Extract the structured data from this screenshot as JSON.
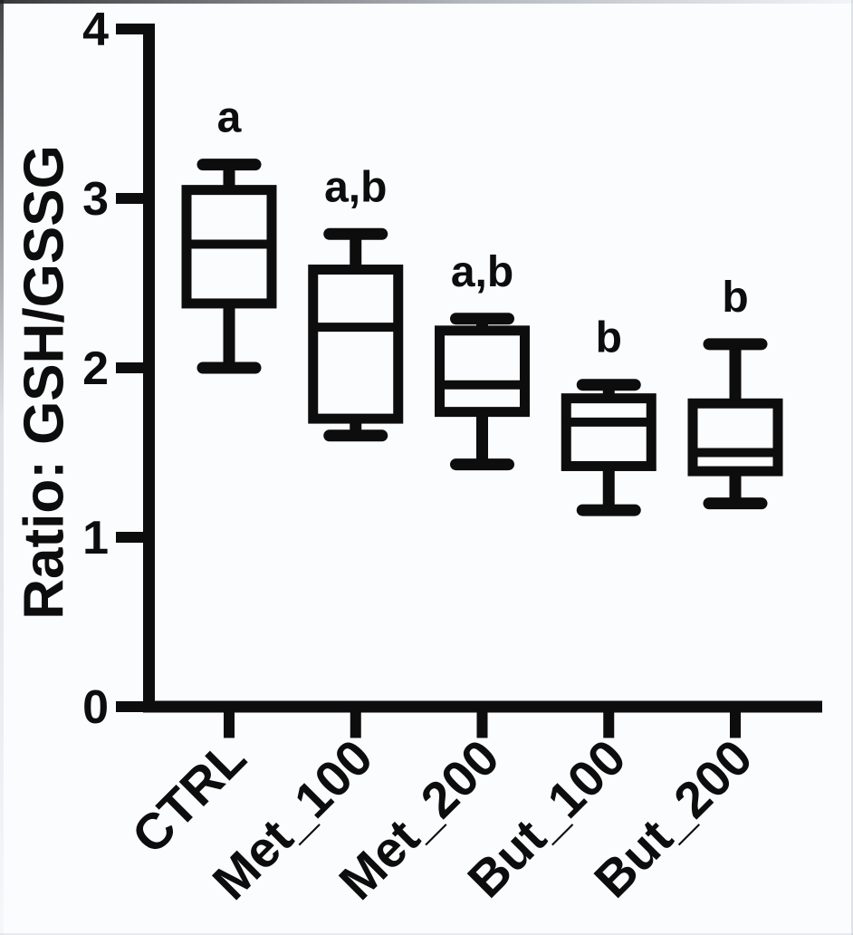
{
  "figure": {
    "background_color": "#fbfcfe",
    "ink_color": "#0d0d0d"
  },
  "chart_data": {
    "type": "boxplot",
    "title": "",
    "xlabel": "",
    "ylabel": "Ratio: GSH/GSSG",
    "ylim": [
      0,
      4
    ],
    "yticks": [
      0,
      1,
      2,
      3,
      4
    ],
    "grid": false,
    "legend": null,
    "x_tick_rotation_deg": 45,
    "categories": [
      "CTRL",
      "Met_100",
      "Met_200",
      "But_100",
      "But_200"
    ],
    "series": [
      {
        "category": "CTRL",
        "whisker_low": 2.0,
        "q1": 2.38,
        "median": 2.73,
        "q3": 3.05,
        "whisker_high": 3.2,
        "annotation": "a"
      },
      {
        "category": "Met_100",
        "whisker_low": 1.6,
        "q1": 1.7,
        "median": 2.24,
        "q3": 2.58,
        "whisker_high": 2.79,
        "annotation": "a,b"
      },
      {
        "category": "Met_200",
        "whisker_low": 1.43,
        "q1": 1.74,
        "median": 1.9,
        "q3": 2.22,
        "whisker_high": 2.29,
        "annotation": "a,b"
      },
      {
        "category": "But_100",
        "whisker_low": 1.16,
        "q1": 1.42,
        "median": 1.68,
        "q3": 1.82,
        "whisker_high": 1.9,
        "annotation": "b"
      },
      {
        "category": "But_200",
        "whisker_low": 1.2,
        "q1": 1.39,
        "median": 1.5,
        "q3": 1.79,
        "whisker_high": 2.14,
        "annotation": "b"
      }
    ]
  }
}
